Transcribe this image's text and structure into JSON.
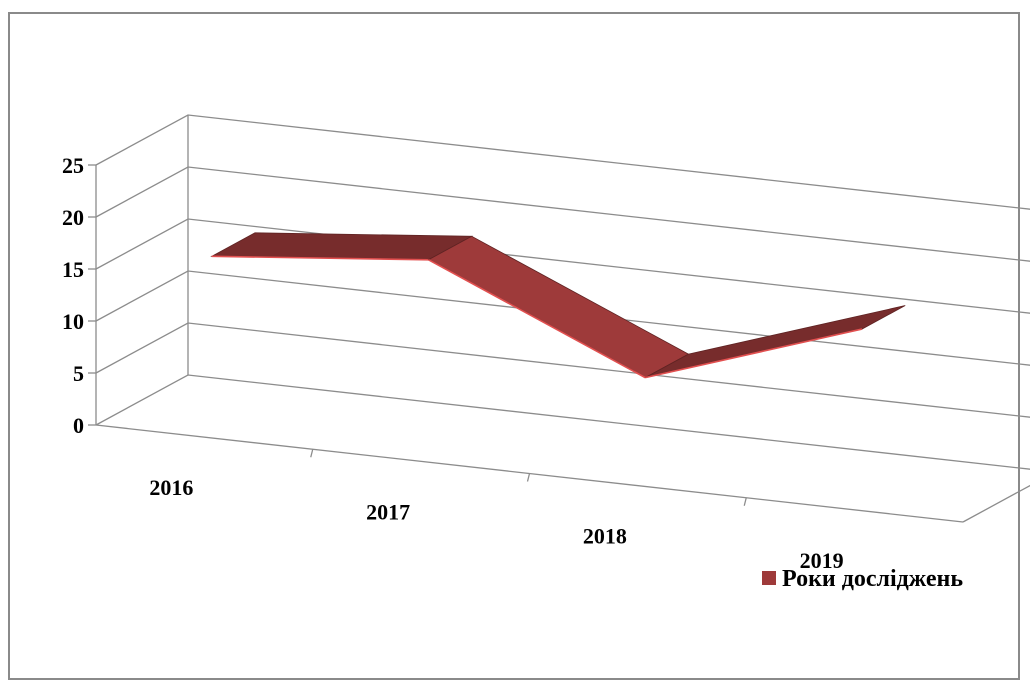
{
  "chart_data": {
    "type": "line",
    "style": "3d-ribbon",
    "categories": [
      "2016",
      "2017",
      "2018",
      "2019"
    ],
    "series": [
      {
        "name": "Роки досліджень",
        "values": [
          17,
          19,
          10,
          17
        ],
        "color": "#9e3a3a"
      }
    ],
    "ylim": [
      0,
      25
    ],
    "yticks": [
      "0",
      "5",
      "10",
      "15",
      "20",
      "25"
    ],
    "grid": true,
    "legend": "bottom-right"
  }
}
